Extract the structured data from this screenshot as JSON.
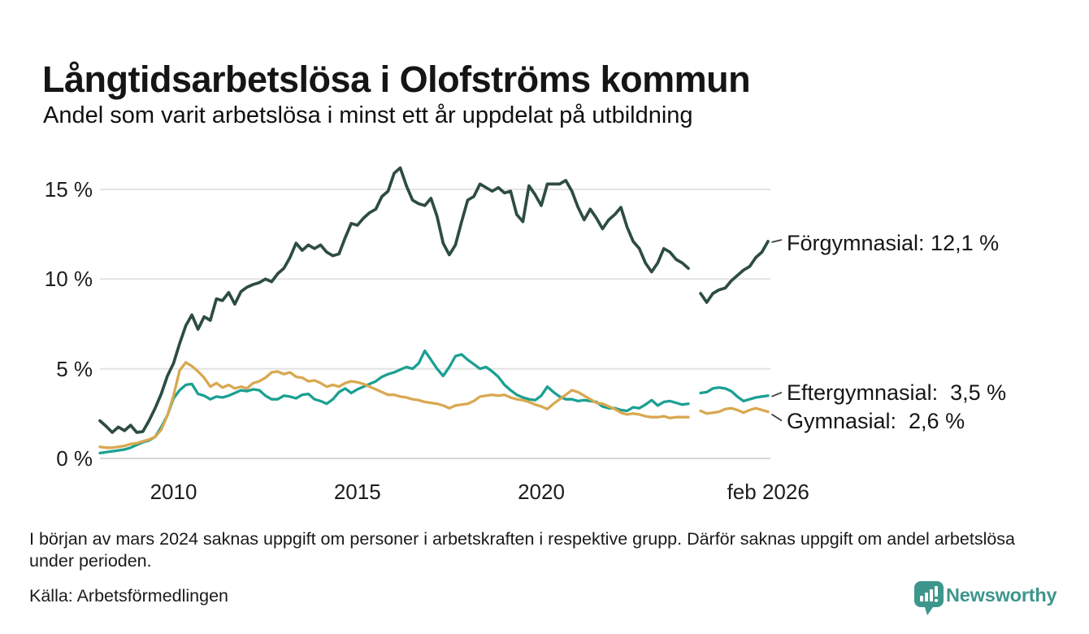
{
  "header": {
    "title": "Långtidsarbetslösa i Olofströms kommun",
    "subtitle": "Andel som varit arbetslösa i minst ett år uppdelat på utbildning"
  },
  "chart_data": {
    "type": "line",
    "title": "Långtidsarbetslösa i Olofströms kommun",
    "subtitle": "Andel som varit arbetslösa i minst ett år uppdelat på utbildning",
    "unit": "%",
    "x_start_year": 2008,
    "x_step_months": 2,
    "x_end_label": "feb 2026",
    "xlim": [
      2008,
      2026.17
    ],
    "ylim": [
      0,
      16.5
    ],
    "grid": "horizontal",
    "legend_position": "right-end-labels",
    "gap_hint": "data missing around March 2024 (null values)",
    "x_ticks": [
      {
        "t": 2010,
        "label": "2010"
      },
      {
        "t": 2015,
        "label": "2015"
      },
      {
        "t": 2020,
        "label": "2020"
      },
      {
        "t": 2026.17,
        "label": "feb 2026"
      }
    ],
    "y_ticks": [
      {
        "v": 0,
        "label": "0 %"
      },
      {
        "v": 5,
        "label": "5 %"
      },
      {
        "v": 10,
        "label": "10 %"
      },
      {
        "v": 15,
        "label": "15 %"
      }
    ],
    "series": [
      {
        "name": "Förgymnasial",
        "color": "#2d4c44",
        "end_value": 12.1,
        "end_label": "Förgymnasial: 12,1 %",
        "values": [
          2.1,
          1.8,
          1.45,
          1.75,
          1.55,
          1.85,
          1.45,
          1.5,
          2.1,
          2.8,
          3.6,
          4.6,
          5.3,
          6.4,
          7.4,
          8.0,
          7.2,
          7.9,
          7.7,
          8.9,
          8.8,
          9.25,
          8.6,
          9.3,
          9.55,
          9.7,
          9.8,
          10.0,
          9.85,
          10.3,
          10.6,
          11.2,
          12.0,
          11.6,
          11.9,
          11.7,
          11.9,
          11.5,
          11.3,
          11.4,
          12.3,
          13.1,
          13.0,
          13.4,
          13.7,
          13.9,
          14.6,
          14.9,
          15.9,
          16.2,
          15.2,
          14.4,
          14.2,
          14.1,
          14.5,
          13.5,
          12.0,
          11.35,
          11.9,
          13.2,
          14.4,
          14.6,
          15.3,
          15.1,
          14.9,
          15.1,
          14.8,
          14.9,
          13.6,
          13.2,
          15.2,
          14.7,
          14.1,
          15.3,
          15.3,
          15.3,
          15.5,
          14.9,
          14.0,
          13.3,
          13.9,
          13.4,
          12.8,
          13.3,
          13.6,
          14.0,
          12.9,
          12.1,
          11.7,
          10.9,
          10.4,
          10.9,
          11.7,
          11.5,
          11.1,
          10.9,
          10.6,
          null,
          9.2,
          8.7,
          9.2,
          9.4,
          9.5,
          9.9,
          10.2,
          10.5,
          10.7,
          11.2,
          11.5,
          12.1
        ]
      },
      {
        "name": "Eftergymnasial",
        "color": "#1aa092",
        "end_value": 3.5,
        "end_label": "Eftergymnasial:  3,5 %",
        "values": [
          0.3,
          0.35,
          0.4,
          0.45,
          0.5,
          0.6,
          0.75,
          0.9,
          1.0,
          1.2,
          1.75,
          2.4,
          3.35,
          3.8,
          4.1,
          4.15,
          3.6,
          3.5,
          3.3,
          3.45,
          3.4,
          3.5,
          3.65,
          3.8,
          3.75,
          3.85,
          3.8,
          3.5,
          3.3,
          3.3,
          3.5,
          3.45,
          3.35,
          3.55,
          3.6,
          3.3,
          3.2,
          3.05,
          3.3,
          3.7,
          3.9,
          3.65,
          3.85,
          4.0,
          4.15,
          4.3,
          4.55,
          4.7,
          4.8,
          4.95,
          5.1,
          5.0,
          5.3,
          6.0,
          5.5,
          5.0,
          4.6,
          5.1,
          5.7,
          5.8,
          5.5,
          5.25,
          5.0,
          5.1,
          4.85,
          4.55,
          4.1,
          3.8,
          3.55,
          3.4,
          3.3,
          3.25,
          3.5,
          4.0,
          3.7,
          3.45,
          3.3,
          3.3,
          3.2,
          3.25,
          3.2,
          3.15,
          2.9,
          2.8,
          2.8,
          2.7,
          2.65,
          2.85,
          2.8,
          3.0,
          3.25,
          2.95,
          3.15,
          3.2,
          3.1,
          3.0,
          3.05,
          null,
          3.65,
          3.7,
          3.9,
          3.95,
          3.9,
          3.75,
          3.45,
          3.2,
          3.3,
          3.4,
          3.45,
          3.5
        ]
      },
      {
        "name": "Gymnasial",
        "color": "#d9a850",
        "end_value": 2.6,
        "end_label": "Gymnasial:  2,6 %",
        "values": [
          0.65,
          0.6,
          0.6,
          0.65,
          0.7,
          0.8,
          0.85,
          0.95,
          1.05,
          1.2,
          1.6,
          2.4,
          3.5,
          4.9,
          5.35,
          5.15,
          4.85,
          4.5,
          4.0,
          4.2,
          3.95,
          4.1,
          3.9,
          4.0,
          3.9,
          4.2,
          4.3,
          4.5,
          4.8,
          4.85,
          4.7,
          4.8,
          4.55,
          4.5,
          4.3,
          4.35,
          4.2,
          4.0,
          4.1,
          4.0,
          4.2,
          4.3,
          4.25,
          4.15,
          4.0,
          3.85,
          3.7,
          3.55,
          3.55,
          3.45,
          3.4,
          3.3,
          3.25,
          3.15,
          3.1,
          3.05,
          2.95,
          2.8,
          2.95,
          3.0,
          3.05,
          3.2,
          3.45,
          3.5,
          3.55,
          3.5,
          3.55,
          3.4,
          3.3,
          3.25,
          3.15,
          3.0,
          2.9,
          2.75,
          3.05,
          3.3,
          3.55,
          3.8,
          3.7,
          3.5,
          3.3,
          3.1,
          3.05,
          2.9,
          2.75,
          2.55,
          2.45,
          2.5,
          2.45,
          2.35,
          2.3,
          2.3,
          2.35,
          2.25,
          2.3,
          2.3,
          2.3,
          null,
          2.65,
          2.5,
          2.55,
          2.6,
          2.75,
          2.8,
          2.7,
          2.55,
          2.7,
          2.8,
          2.7,
          2.6
        ]
      }
    ],
    "colors": {
      "grid": "#e4e4e4",
      "zero_line": "#d7d7d7",
      "connector": "#3a3a3a"
    }
  },
  "footer": {
    "note": "I början av mars 2024 saknas uppgift om personer i arbetskraften i respektive grupp. Därför saknas uppgift om andel arbetslösa under perioden.",
    "source": "Källa: Arbetsförmedlingen",
    "brand_name": "Newsworthy",
    "brand_color": "#3d968c"
  }
}
